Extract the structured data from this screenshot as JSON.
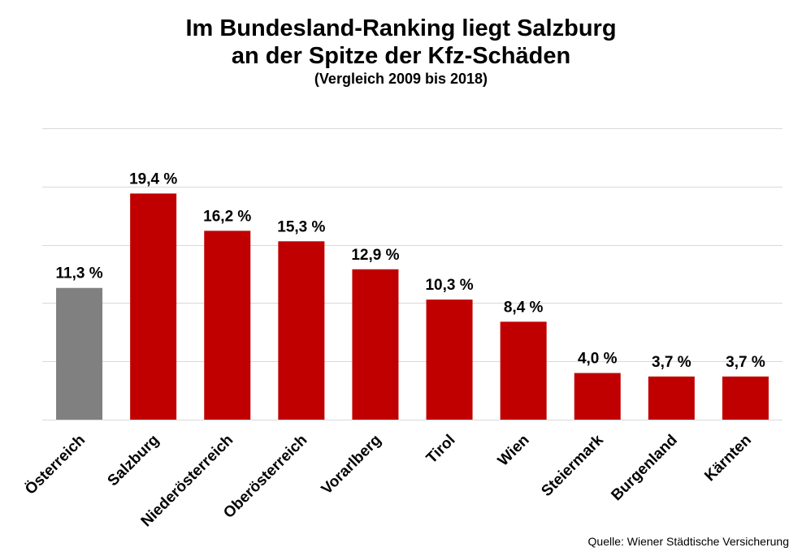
{
  "chart_data": {
    "type": "bar",
    "title_line1": "Im Bundesland-Ranking liegt Salzburg",
    "title_line2": "an der Spitze der Kfz-Schäden",
    "subtitle": "(Vergleich 2009 bis 2018)",
    "categories": [
      "Österreich",
      "Salzburg",
      "Niederösterreich",
      "Oberösterreich",
      "Vorarlberg",
      "Tirol",
      "Wien",
      "Steiermark",
      "Burgenland",
      "Kärnten"
    ],
    "values": [
      11.3,
      19.4,
      16.2,
      15.3,
      12.9,
      10.3,
      8.4,
      4.0,
      3.7,
      3.7
    ],
    "value_labels": [
      "11,3 %",
      "19,4 %",
      "16,2 %",
      "15,3 %",
      "12,9 %",
      "10,3 %",
      "8,4 %",
      "4,0 %",
      "3,7 %",
      "3,7 %"
    ],
    "colors": [
      "#808080",
      "#c00000",
      "#c00000",
      "#c00000",
      "#c00000",
      "#c00000",
      "#c00000",
      "#c00000",
      "#c00000",
      "#c00000"
    ],
    "ylim": [
      0,
      25
    ],
    "grid": true,
    "xlabel": "",
    "ylabel": ""
  },
  "source": "Quelle: Wiener Städtische Versicherung"
}
